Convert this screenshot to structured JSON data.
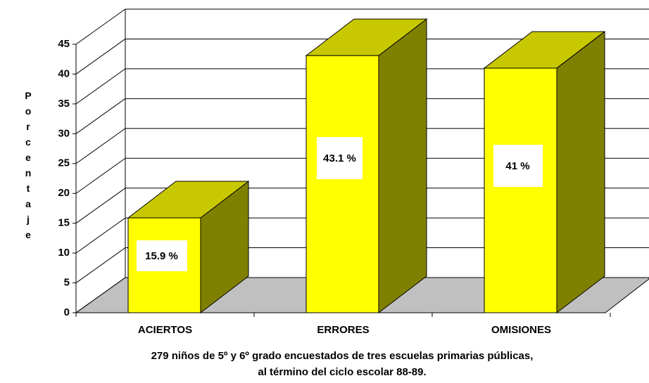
{
  "chart_data": {
    "type": "bar3d",
    "ylabel": "Porcentaje",
    "xlabel": [
      "279 niños de 5º y 6º grado encuestados de tres escuelas primarias públicas,",
      "al término del ciclo escolar 88-89."
    ],
    "categories": [
      "ACIERTOS",
      "ERRORES",
      "OMISIONES"
    ],
    "values": [
      15.9,
      43.1,
      41
    ],
    "value_labels": [
      "15.9 %",
      "43.1 %",
      "41 %"
    ],
    "color": "#ffff00",
    "top_color": "#c8c800",
    "side_color": "#808000",
    "floor_color": "#c0c0c0",
    "ylim": [
      0,
      45
    ],
    "yticks": [
      0,
      5,
      10,
      15,
      20,
      25,
      30,
      35,
      40,
      45
    ],
    "grid": true
  }
}
